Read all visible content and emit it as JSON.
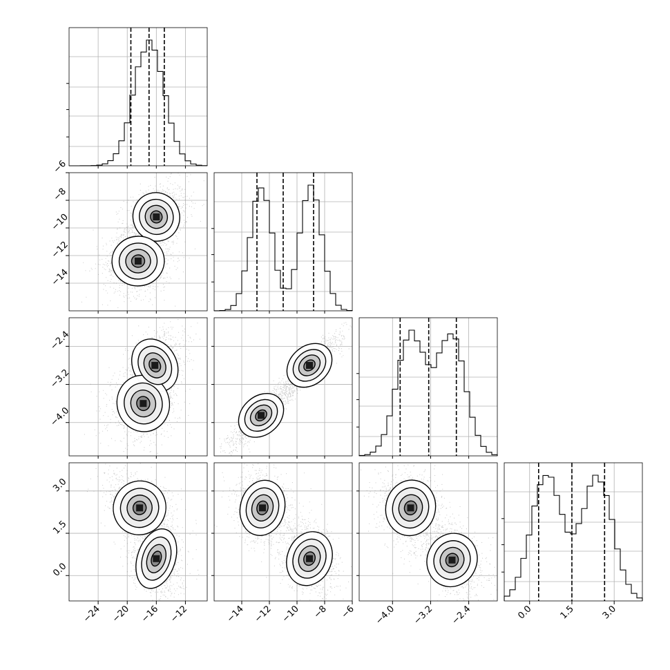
{
  "chart_data": {
    "type": "corner",
    "title": "",
    "params": [
      {
        "index": 0,
        "range": [
          -28,
          -9
        ],
        "ticks": [
          -24,
          -20,
          -16,
          -12
        ],
        "tick_labels": [
          "−24",
          "−20",
          "−16",
          "−12"
        ],
        "quantiles": [
          -19.5,
          -17.0,
          -14.9
        ],
        "modes": [
          {
            "mean": -17.0,
            "sd": 2.1,
            "w": 1.0
          }
        ]
      },
      {
        "index": 1,
        "range": [
          -16,
          -6
        ],
        "ticks": [
          -14,
          -12,
          -10,
          -8,
          -6
        ],
        "tick_labels": [
          "−14",
          "−12",
          "−10",
          "−8",
          "−6"
        ],
        "quantiles": [
          -12.9,
          -11.0,
          -8.8
        ],
        "modes": [
          {
            "mean": -12.6,
            "sd": 0.8,
            "w": 0.5
          },
          {
            "mean": -9.0,
            "sd": 0.8,
            "w": 0.5
          }
        ]
      },
      {
        "index": 2,
        "range": [
          -4.7,
          -1.8
        ],
        "ticks": [
          -4.0,
          -3.2,
          -2.4
        ],
        "tick_labels": [
          "−4.0",
          "−3.2",
          "−2.4"
        ],
        "quantiles": [
          -3.84,
          -3.24,
          -2.66
        ],
        "modes": [
          {
            "mean": -3.62,
            "sd": 0.3,
            "w": 0.5
          },
          {
            "mean": -2.77,
            "sd": 0.3,
            "w": 0.5
          }
        ]
      },
      {
        "index": 3,
        "range": [
          -0.9,
          4.0
        ],
        "ticks": [
          0.0,
          1.5,
          3.0
        ],
        "tick_labels": [
          "0.0",
          "1.5",
          "3.0"
        ],
        "quantiles": [
          0.32,
          1.5,
          2.66
        ],
        "modes": [
          {
            "mean": 0.6,
            "sd": 0.55,
            "w": 0.5
          },
          {
            "mean": 2.4,
            "sd": 0.55,
            "w": 0.5
          }
        ]
      }
    ],
    "pairs": [
      {
        "x": 0,
        "y": 1,
        "clusters": [
          {
            "mx": -16.0,
            "my": -9.2,
            "sx": 1.6,
            "sy": 0.9,
            "rho": 0.3,
            "w": 0.5
          },
          {
            "mx": -18.5,
            "my": -12.4,
            "sx": 1.8,
            "sy": 0.9,
            "rho": 0.1,
            "w": 0.5
          }
        ]
      },
      {
        "x": 0,
        "y": 2,
        "clusters": [
          {
            "mx": -16.2,
            "my": -2.8,
            "sx": 1.5,
            "sy": 0.3,
            "rho": 0.4,
            "w": 0.5
          },
          {
            "mx": -17.8,
            "my": -3.6,
            "sx": 1.8,
            "sy": 0.3,
            "rho": 0.2,
            "w": 0.5
          }
        ]
      },
      {
        "x": 1,
        "y": 2,
        "clusters": [
          {
            "mx": -9.1,
            "my": -2.8,
            "sx": 0.9,
            "sy": 0.26,
            "rho": 0.9,
            "w": 0.5
          },
          {
            "mx": -12.6,
            "my": -3.85,
            "sx": 0.9,
            "sy": 0.26,
            "rho": 0.9,
            "w": 0.5
          }
        ]
      },
      {
        "x": 0,
        "y": 3,
        "clusters": [
          {
            "mx": -18.3,
            "my": 2.4,
            "sx": 1.8,
            "sy": 0.5,
            "rho": -0.4,
            "w": 0.5
          },
          {
            "mx": -16.0,
            "my": 0.6,
            "sx": 1.3,
            "sy": 0.55,
            "rho": -0.2,
            "w": 0.5
          }
        ]
      },
      {
        "x": 1,
        "y": 3,
        "clusters": [
          {
            "mx": -12.5,
            "my": 2.4,
            "sx": 0.8,
            "sy": 0.5,
            "rho": -0.2,
            "w": 0.5
          },
          {
            "mx": -9.1,
            "my": 0.6,
            "sx": 0.8,
            "sy": 0.5,
            "rho": -0.3,
            "w": 0.5
          }
        ]
      },
      {
        "x": 2,
        "y": 3,
        "clusters": [
          {
            "mx": -3.62,
            "my": 2.4,
            "sx": 0.26,
            "sy": 0.5,
            "rho": -0.2,
            "w": 0.5
          },
          {
            "mx": -2.75,
            "my": 0.55,
            "sx": 0.26,
            "sy": 0.5,
            "rho": -0.4,
            "w": 0.5
          }
        ]
      }
    ]
  }
}
